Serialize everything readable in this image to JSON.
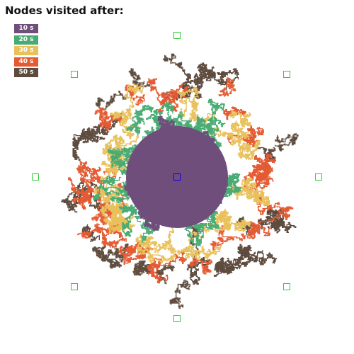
{
  "title": "Nodes visited after:",
  "legend": [
    {
      "label": "10 s",
      "color": "#6f4e7c"
    },
    {
      "label": "20 s",
      "color": "#48ab73"
    },
    {
      "label": "30 s",
      "color": "#e9c15c"
    },
    {
      "label": "40 s",
      "color": "#e45a32"
    },
    {
      "label": "50 s",
      "color": "#5d4b3e"
    }
  ],
  "marker_colors": {
    "start": "#0000ee",
    "target": "#33cc33"
  }
}
